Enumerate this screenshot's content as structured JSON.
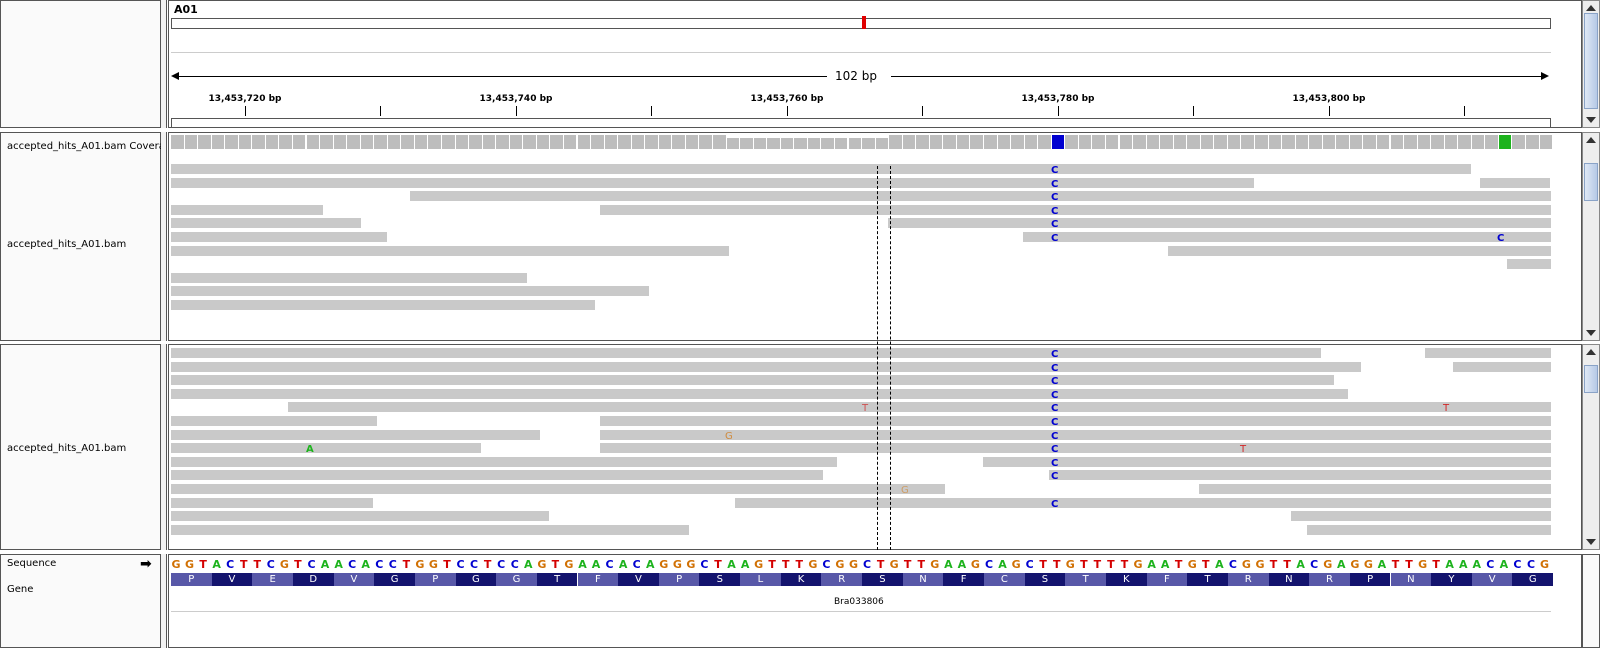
{
  "ruler": {
    "chromosome": "A01",
    "span_label": "102 bp",
    "ticks": [
      "13,453,720 bp",
      "13,453,740 bp",
      "13,453,760 bp",
      "13,453,780 bp",
      "13,453,800 bp"
    ]
  },
  "tracks": {
    "coverage_label": "accepted_hits_A01.bam Covera",
    "alignment1_label": "accepted_hits_A01.bam",
    "alignment2_label": "accepted_hits_A01.bam",
    "sequence_label": "Sequence",
    "gene_label": "Gene"
  },
  "sequence": "GGTACTTCGTCAACACCTGGTCCTCCAGTGAACACAGGGCTAAGTTTGCGGCTGTTGAAGCAGCTTGTTTTGAATGTACGGTTACGAGGATTGTAAACACCG",
  "amino_acids": [
    "P",
    "V",
    "E",
    "D",
    "V",
    "G",
    "P",
    "G",
    "G",
    "T",
    "F",
    "V",
    "P",
    "S",
    "L",
    "K",
    "R",
    "S",
    "N",
    "F",
    "C",
    "S",
    "T",
    "K",
    "F",
    "T",
    "R",
    "N",
    "R",
    "P",
    "N",
    "Y",
    "V",
    "G"
  ],
  "gene_name": "Bra033806",
  "colors": {
    "A": "#1db31d",
    "C": "#0000d0",
    "G": "#d17104",
    "T": "#d40000",
    "read": "#c9c9c9",
    "coverage": "#bdbdbd",
    "aa_dark": "#14146e",
    "aa_light": "#5858a8"
  },
  "mismatch_bases": {
    "C": "C",
    "A": "A",
    "G": "G",
    "T": "T"
  }
}
